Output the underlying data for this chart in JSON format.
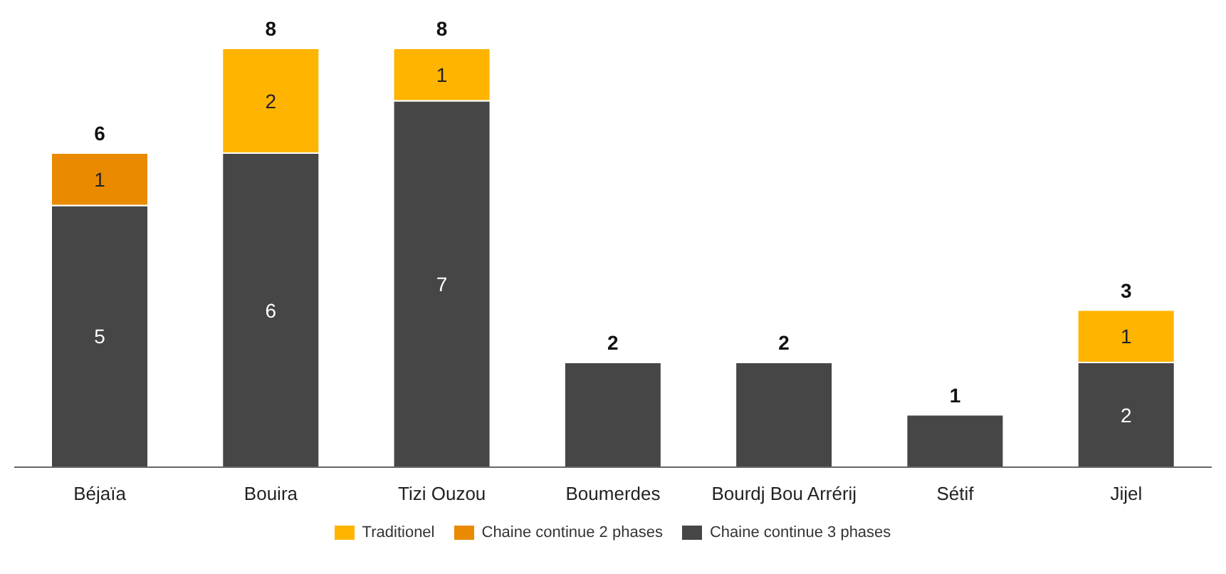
{
  "chart_data": {
    "type": "bar",
    "stacked": true,
    "legend": "bottom",
    "categories": [
      "Béjaïa",
      "Bouira",
      "Tizi Ouzou",
      "Boumerdes",
      "Bourdj Bou Arrérij",
      "Sétif",
      "Jijel"
    ],
    "series": [
      {
        "name": "Chaine continue 3 phases",
        "color": "#464646",
        "values": [
          5,
          6,
          7,
          2,
          2,
          1,
          2
        ],
        "value_labels": [
          "5",
          "6",
          "7",
          null,
          null,
          null,
          "2"
        ]
      },
      {
        "name": "Chaine continue 2 phases",
        "color": "#e98a00",
        "values": [
          1,
          null,
          null,
          null,
          null,
          null,
          null
        ],
        "value_labels": [
          "1",
          null,
          null,
          null,
          null,
          null,
          null
        ]
      },
      {
        "name": "Traditionel",
        "color": "#ffb400",
        "values": [
          null,
          2,
          1,
          null,
          null,
          null,
          1
        ],
        "value_labels": [
          null,
          "2",
          "1",
          null,
          null,
          null,
          "1"
        ]
      }
    ],
    "totals": [
      "6",
      "8",
      "8",
      "2",
      "2",
      "1",
      "3"
    ]
  }
}
